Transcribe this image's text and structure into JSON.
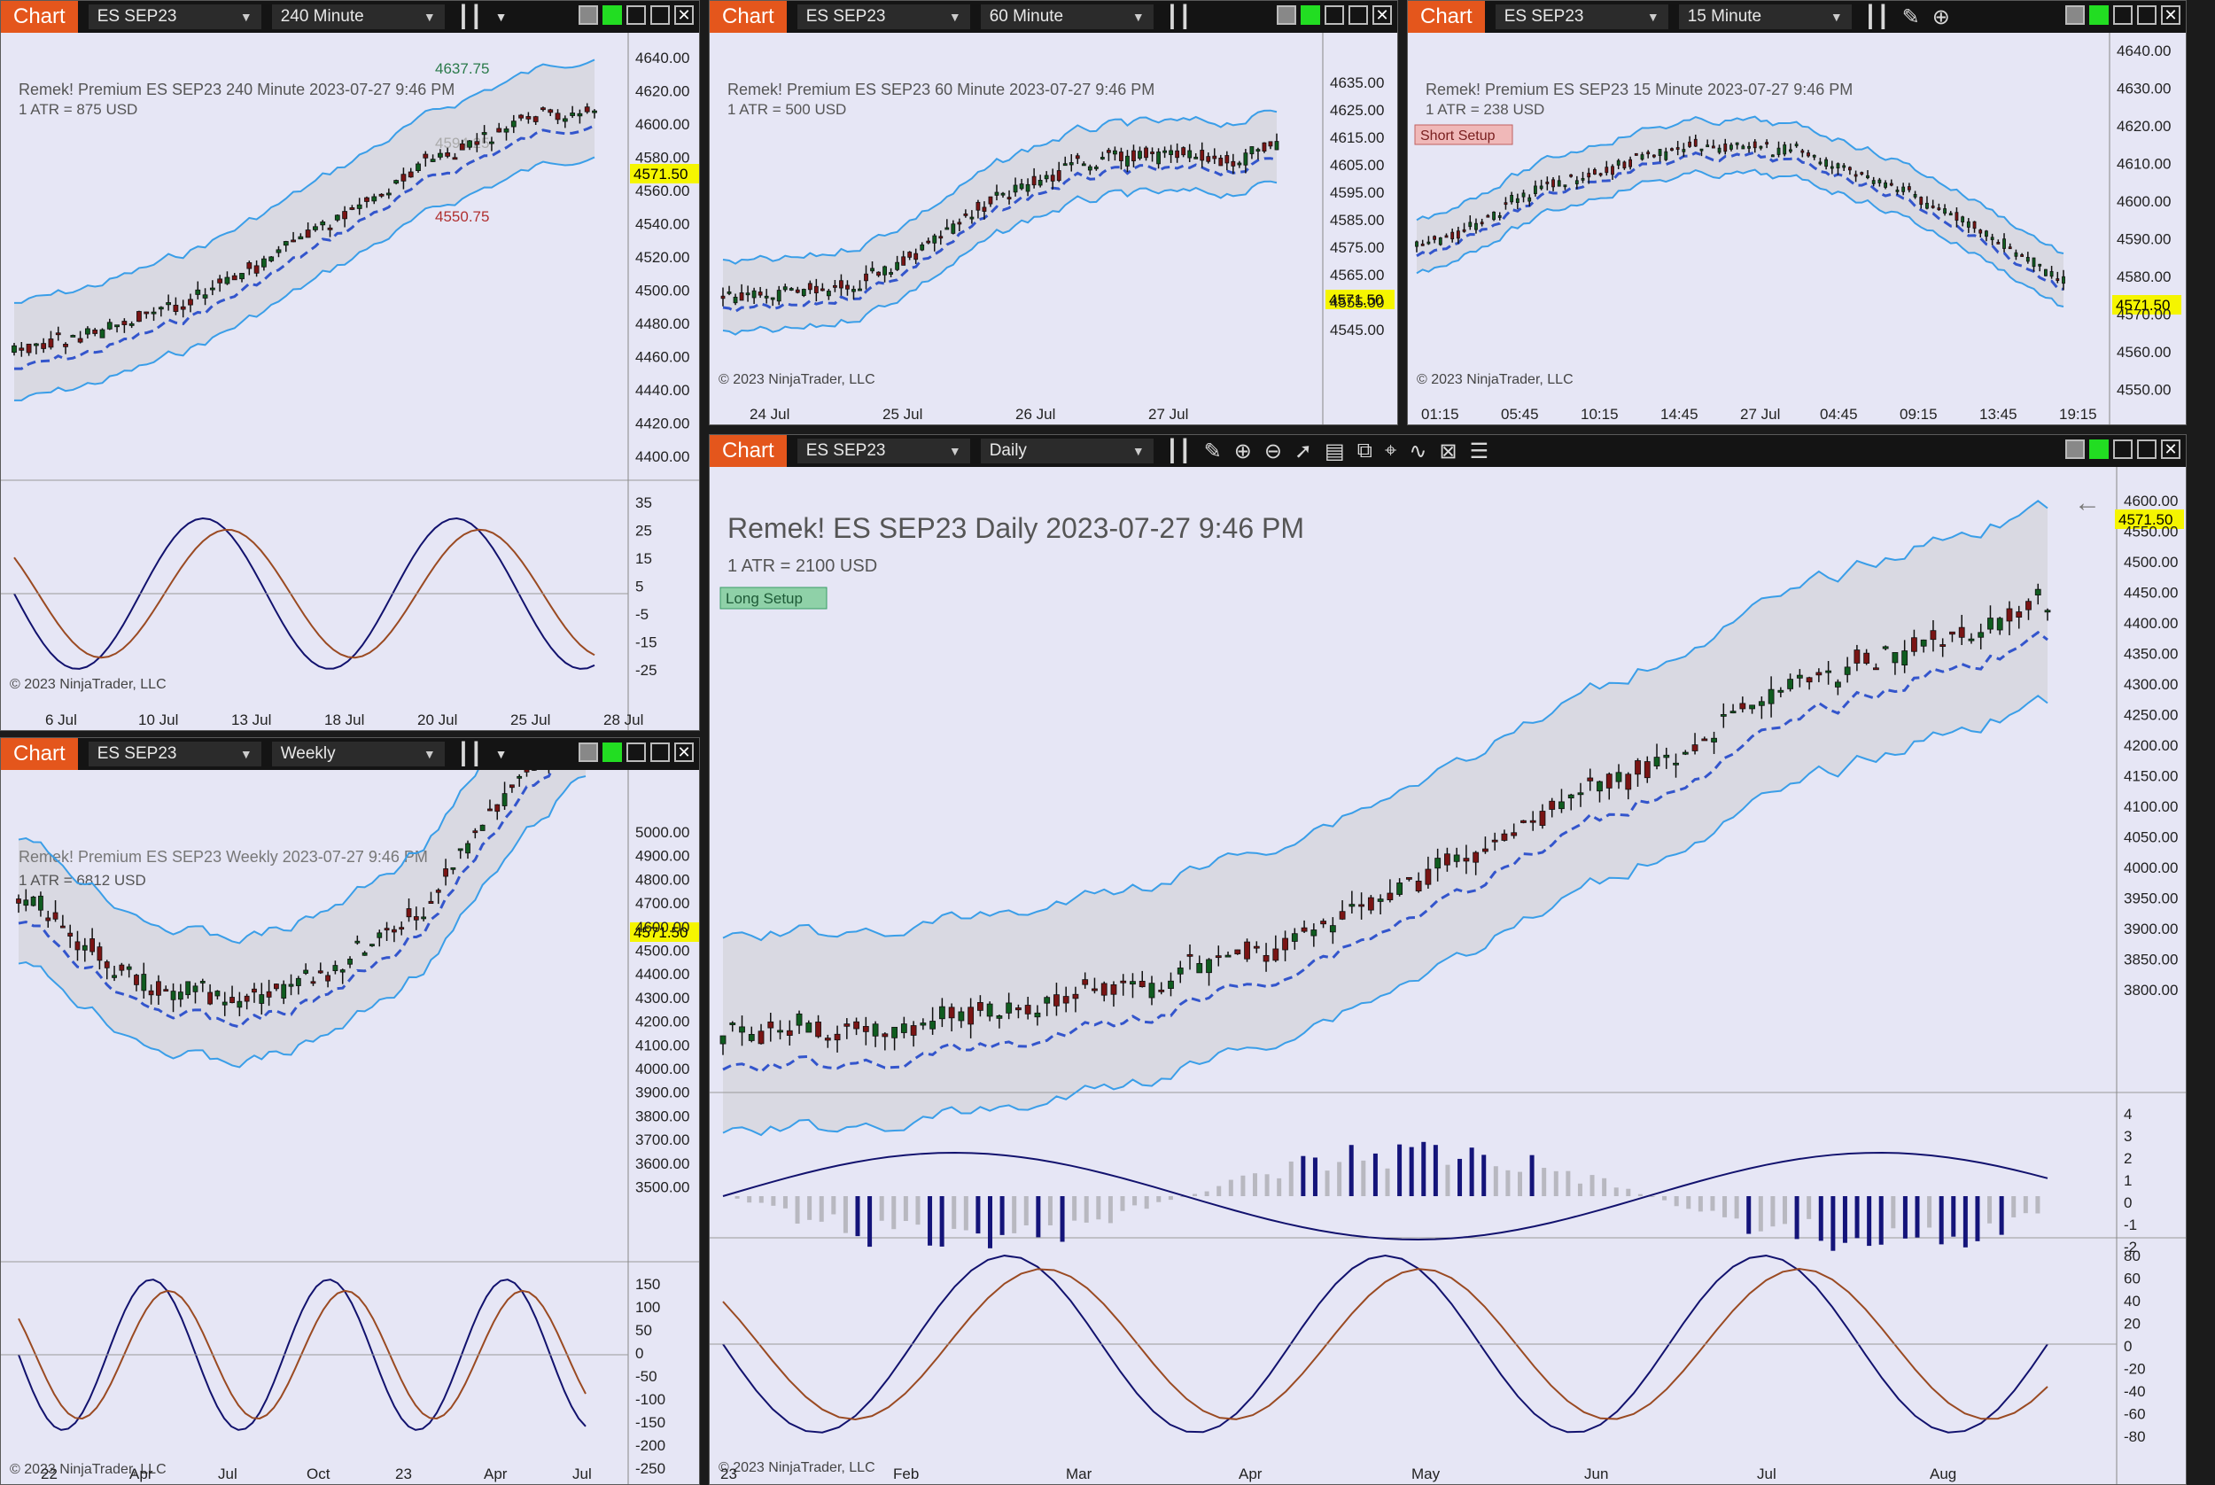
{
  "app": {
    "tab_label": "Chart",
    "copyright": "© 2023 NinjaTrader, LLC",
    "instrument": "ES SEP23",
    "last_price": "4571.50"
  },
  "w240": {
    "interval": "240 Minute",
    "title": "Remek!  Premium  ES SEP23  240 Minute  2023-07-27 9:46 PM",
    "atr": "1 ATR = 875 USD",
    "hi_label": "4637.75",
    "mid_label": "4594.25",
    "lo_label": "4550.75",
    "yticks": [
      "4640.00",
      "4620.00",
      "4600.00",
      "4580.00",
      "4560.00",
      "4540.00",
      "4520.00",
      "4500.00",
      "4480.00",
      "4460.00",
      "4440.00",
      "4420.00",
      "4400.00"
    ],
    "osc_ticks": [
      "35",
      "25",
      "15",
      "5",
      "-5",
      "-15",
      "-25"
    ],
    "xticks": [
      "6 Jul",
      "10 Jul",
      "13 Jul",
      "18 Jul",
      "20 Jul",
      "25 Jul",
      "28 Jul"
    ]
  },
  "w60": {
    "interval": "60 Minute",
    "title": "Remek!  Premium  ES SEP23  60 Minute  2023-07-27 9:46 PM",
    "atr": "1 ATR = 500 USD",
    "yticks": [
      "4635.00",
      "4625.00",
      "4615.00",
      "4605.00",
      "4595.00",
      "4585.00",
      "4575.00",
      "4565.00",
      "4555.00",
      "4545.00"
    ],
    "xticks": [
      "24 Jul",
      "25 Jul",
      "26 Jul",
      "27 Jul"
    ]
  },
  "w15": {
    "interval": "15 Minute",
    "title": "Remek!  Premium  ES SEP23  15 Minute  2023-07-27 9:46 PM",
    "atr": "1 ATR = 238 USD",
    "setup": "Short Setup",
    "yticks": [
      "4640.00",
      "4630.00",
      "4620.00",
      "4610.00",
      "4600.00",
      "4590.00",
      "4580.00",
      "4570.00",
      "4560.00",
      "4550.00"
    ],
    "xticks": [
      "01:15",
      "05:45",
      "10:15",
      "14:45",
      "27 Jul",
      "04:45",
      "09:15",
      "13:45",
      "19:15"
    ]
  },
  "wwk": {
    "interval": "Weekly",
    "title": "Remek!  Premium  ES SEP23  Weekly  2023-07-27 9:46 PM",
    "atr": "1 ATR = 6812 USD",
    "yticks": [
      "5000.00",
      "4900.00",
      "4800.00",
      "4700.00",
      "4600.00",
      "4500.00",
      "4400.00",
      "4300.00",
      "4200.00",
      "4100.00",
      "4000.00",
      "3900.00",
      "3800.00",
      "3700.00",
      "3600.00",
      "3500.00"
    ],
    "osc_ticks": [
      "150",
      "100",
      "50",
      "0",
      "-50",
      "-100",
      "-150",
      "-200",
      "-250"
    ],
    "xticks": [
      "22",
      "Apr",
      "Jul",
      "Oct",
      "23",
      "Apr",
      "Jul"
    ]
  },
  "wday": {
    "interval": "Daily",
    "title": "Remek!  ES SEP23  Daily  2023-07-27 9:46 PM",
    "atr": "1 ATR = 2100 USD",
    "setup": "Long Setup",
    "yticks": [
      "4600.00",
      "4550.00",
      "4500.00",
      "4450.00",
      "4400.00",
      "4350.00",
      "4300.00",
      "4250.00",
      "4200.00",
      "4150.00",
      "4100.00",
      "4050.00",
      "4000.00",
      "3950.00",
      "3900.00",
      "3850.00",
      "3800.00"
    ],
    "hist_ticks": [
      "4",
      "3",
      "2",
      "1",
      "0",
      "-1",
      "-2"
    ],
    "osc_ticks": [
      "80",
      "60",
      "40",
      "20",
      "0",
      "-20",
      "-40",
      "-60",
      "-80"
    ],
    "xticks": [
      "23",
      "Feb",
      "Mar",
      "Apr",
      "May",
      "Jun",
      "Jul",
      "Aug"
    ]
  },
  "colors": {
    "accent": "#e4561c",
    "up": "#0f5c1f",
    "down": "#7a1414",
    "band": "#3a9ee8",
    "ma": "#3355cc",
    "price_tag": "#f5f500"
  }
}
